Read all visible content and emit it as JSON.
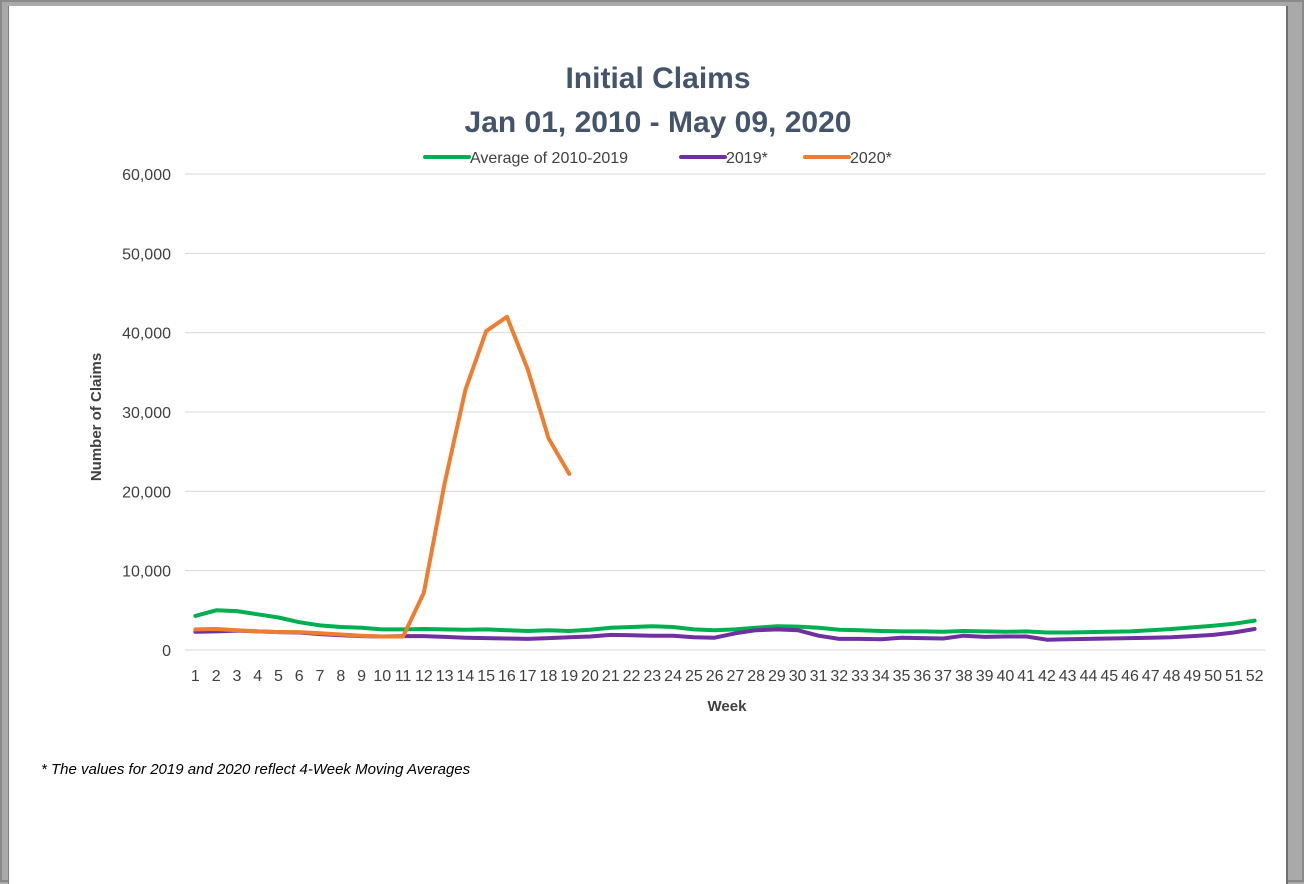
{
  "footnote": "* The values for 2019 and 2020 reflect 4-Week Moving Averages",
  "chart_data": {
    "type": "line",
    "title": "Initial Claims",
    "subtitle": "Jan 01, 2010 - May 09, 2020",
    "xlabel": "Week",
    "ylabel": "Number of Claims",
    "ylim": [
      0,
      60000
    ],
    "yticks": [
      0,
      10000,
      20000,
      30000,
      40000,
      50000,
      60000
    ],
    "ytick_labels": [
      "0",
      "10,000",
      "20,000",
      "30,000",
      "40,000",
      "50,000",
      "60,000"
    ],
    "grid": true,
    "legend_position": "top",
    "categories": [
      "1",
      "2",
      "3",
      "4",
      "5",
      "6",
      "7",
      "8",
      "9",
      "10",
      "11",
      "12",
      "13",
      "14",
      "15",
      "16",
      "17",
      "18",
      "19",
      "20",
      "21",
      "22",
      "23",
      "24",
      "25",
      "26",
      "27",
      "28",
      "29",
      "30",
      "31",
      "32",
      "33",
      "34",
      "35",
      "36",
      "37",
      "38",
      "39",
      "40",
      "41",
      "42",
      "43",
      "44",
      "45",
      "46",
      "47",
      "48",
      "49",
      "50",
      "51",
      "52"
    ],
    "series": [
      {
        "name": "Average of 2010-2019",
        "color": "#00b050",
        "values": [
          4300,
          5000,
          4900,
          4500,
          4100,
          3500,
          3100,
          2900,
          2800,
          2600,
          2600,
          2650,
          2600,
          2550,
          2600,
          2500,
          2400,
          2500,
          2400,
          2550,
          2800,
          2900,
          3000,
          2900,
          2600,
          2500,
          2600,
          2800,
          3000,
          2950,
          2800,
          2550,
          2500,
          2400,
          2350,
          2350,
          2300,
          2400,
          2350,
          2300,
          2350,
          2200,
          2200,
          2250,
          2300,
          2350,
          2500,
          2650,
          2850,
          3050,
          3300,
          3700
        ]
      },
      {
        "name": "2019*",
        "color": "#7030a0",
        "values": [
          2300,
          2350,
          2450,
          2350,
          2250,
          2200,
          2000,
          1850,
          1750,
          1700,
          1750,
          1750,
          1650,
          1550,
          1500,
          1450,
          1400,
          1500,
          1600,
          1700,
          1900,
          1850,
          1800,
          1800,
          1600,
          1550,
          2100,
          2500,
          2600,
          2500,
          1800,
          1400,
          1400,
          1350,
          1550,
          1500,
          1450,
          1800,
          1650,
          1700,
          1700,
          1300,
          1350,
          1400,
          1450,
          1500,
          1550,
          1600,
          1750,
          1900,
          2200,
          2650
        ]
      },
      {
        "name": "2020*",
        "color": "#ed7d31",
        "values": [
          2600,
          2650,
          2500,
          2350,
          2250,
          2250,
          2100,
          1950,
          1800,
          1700,
          1700,
          7200,
          21000,
          32800,
          40200,
          42000,
          35400,
          26700,
          22200,
          null,
          null,
          null,
          null,
          null,
          null,
          null,
          null,
          null,
          null,
          null,
          null,
          null,
          null,
          null,
          null,
          null,
          null,
          null,
          null,
          null,
          null,
          null,
          null,
          null,
          null,
          null,
          null,
          null,
          null,
          null,
          null,
          null
        ]
      }
    ]
  }
}
